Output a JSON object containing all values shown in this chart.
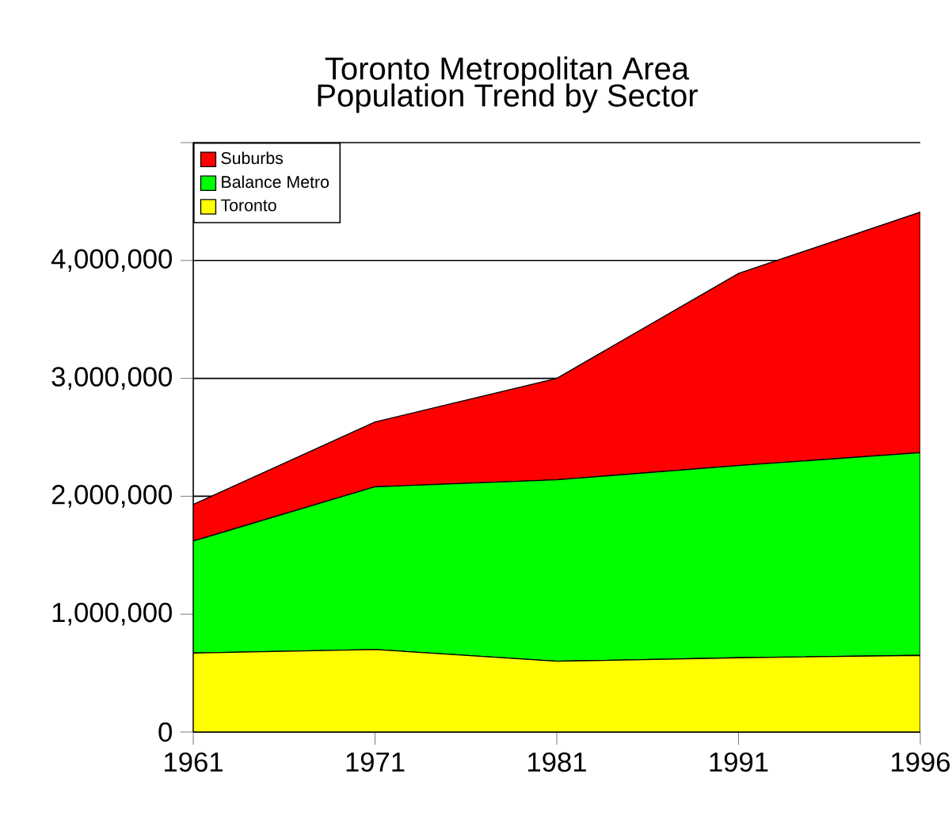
{
  "chart_data": {
    "type": "area",
    "stacked": true,
    "title": "Toronto Metropolitan Area",
    "subtitle": "Population Trend by Sector",
    "categories": [
      "1961",
      "1971",
      "1981",
      "1991",
      "1996"
    ],
    "series": [
      {
        "name": "Toronto",
        "color": "#ffff00",
        "values": [
          670000,
          700000,
          600000,
          630000,
          650000
        ]
      },
      {
        "name": "Balance Metro",
        "color": "#00ff00",
        "values": [
          950000,
          1380000,
          1540000,
          1630000,
          1720000
        ]
      },
      {
        "name": "Suburbs",
        "color": "#ff0000",
        "values": [
          310000,
          550000,
          860000,
          1630000,
          2040000
        ]
      }
    ],
    "ylim": [
      0,
      5000000
    ],
    "yticks": [
      0,
      {
        "value": 1000000,
        "label": "1,000,000"
      },
      {
        "value": 2000000,
        "label": "2,000,000"
      },
      {
        "value": 3000000,
        "label": "3,000,000"
      },
      {
        "value": 4000000,
        "label": "4,000,000"
      },
      {
        "value": 5000000,
        "label": null
      }
    ],
    "grid": "y",
    "legend": "top left"
  }
}
